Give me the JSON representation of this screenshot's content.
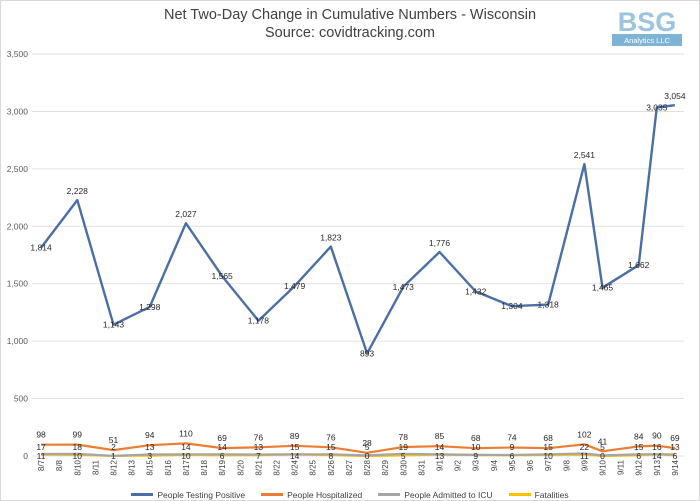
{
  "title": "Net Two-Day Change in Cumulative Numbers - Wisconsin",
  "subtitle": "Source: covidtracking.com",
  "logo": {
    "text": "BSG",
    "tagline": "Analytics LLC"
  },
  "colors": {
    "positive": "#4a6fa5",
    "hospitalized": "#ed7d31",
    "icu": "#a5a5a5",
    "fatalities": "#ffc000",
    "grid": "#d9d9d9",
    "logo": "#7fb3d5"
  },
  "chart_data": {
    "type": "line",
    "title": "Net Two-Day Change in Cumulative Numbers - Wisconsin",
    "subtitle": "Source: covidtracking.com",
    "categories": [
      "8/7",
      "8/8",
      "8/10",
      "8/11",
      "8/12",
      "8/13",
      "8/15",
      "8/16",
      "8/17",
      "8/18",
      "8/19",
      "8/20",
      "8/21",
      "8/22",
      "8/24",
      "8/25",
      "8/26",
      "8/27",
      "8/28",
      "8/29",
      "8/30",
      "8/31",
      "9/1",
      "9/2",
      "9/3",
      "9/4",
      "9/5",
      "9/6",
      "9/7",
      "9/8",
      "9/9",
      "9/10",
      "9/11",
      "9/12",
      "9/13",
      "9/14"
    ],
    "ylim": [
      0,
      3500
    ],
    "yticks": [
      "0",
      "500",
      "1,000",
      "1,500",
      "2,000",
      "2,500",
      "3,000",
      "3,500"
    ],
    "grid": true,
    "legend_position": "bottom",
    "series": [
      {
        "name": "People Testing Positive",
        "color": "#4a6fa5",
        "points": [
          {
            "i": 0,
            "v": 1814,
            "label": "1,814"
          },
          {
            "i": 2,
            "v": 2228,
            "label": "2,228"
          },
          {
            "i": 4,
            "v": 1143,
            "label": "1,143"
          },
          {
            "i": 6,
            "v": 1298,
            "label": "1,298"
          },
          {
            "i": 8,
            "v": 2027,
            "label": "2,027"
          },
          {
            "i": 10,
            "v": 1565,
            "label": "1,565"
          },
          {
            "i": 12,
            "v": 1178,
            "label": "1,178"
          },
          {
            "i": 14,
            "v": 1479,
            "label": "1,479"
          },
          {
            "i": 16,
            "v": 1823,
            "label": "1,823"
          },
          {
            "i": 18,
            "v": 893,
            "label": "893"
          },
          {
            "i": 20,
            "v": 1473,
            "label": "1,473"
          },
          {
            "i": 22,
            "v": 1776,
            "label": "1,776"
          },
          {
            "i": 24,
            "v": 1432,
            "label": "1,432"
          },
          {
            "i": 26,
            "v": 1304,
            "label": "1,304"
          },
          {
            "i": 28,
            "v": 1318,
            "label": "1,318"
          },
          {
            "i": 30,
            "v": 2541,
            "label": "2,541"
          },
          {
            "i": 31,
            "v": 1465,
            "label": "1,465"
          },
          {
            "i": 33,
            "v": 1662,
            "label": "1,662"
          },
          {
            "i": 34,
            "v": 3035,
            "label": "3,035"
          },
          {
            "i": 35,
            "v": 3054,
            "label": "3,054"
          }
        ]
      },
      {
        "name": "People Hospitalized",
        "color": "#ed7d31",
        "points": [
          {
            "i": 0,
            "v": 98,
            "label": "98"
          },
          {
            "i": 2,
            "v": 99,
            "label": "99"
          },
          {
            "i": 4,
            "v": 51,
            "label": "51"
          },
          {
            "i": 6,
            "v": 94,
            "label": "94"
          },
          {
            "i": 8,
            "v": 110,
            "label": "110"
          },
          {
            "i": 10,
            "v": 69,
            "label": "69"
          },
          {
            "i": 12,
            "v": 76,
            "label": "76"
          },
          {
            "i": 14,
            "v": 89,
            "label": "89"
          },
          {
            "i": 16,
            "v": 76,
            "label": "76"
          },
          {
            "i": 18,
            "v": 28,
            "label": "28"
          },
          {
            "i": 20,
            "v": 78,
            "label": "78"
          },
          {
            "i": 22,
            "v": 85,
            "label": "85"
          },
          {
            "i": 24,
            "v": 68,
            "label": "68"
          },
          {
            "i": 26,
            "v": 74,
            "label": "74"
          },
          {
            "i": 28,
            "v": 68,
            "label": "68"
          },
          {
            "i": 30,
            "v": 102,
            "label": "102"
          },
          {
            "i": 31,
            "v": 41,
            "label": "41"
          },
          {
            "i": 33,
            "v": 84,
            "label": "84"
          },
          {
            "i": 34,
            "v": 90,
            "label": "90"
          },
          {
            "i": 35,
            "v": 69,
            "label": "69"
          }
        ]
      },
      {
        "name": "People Admitted to ICU",
        "color": "#a5a5a5",
        "points": [
          {
            "i": 0,
            "v": 17,
            "label": "17"
          },
          {
            "i": 2,
            "v": 18,
            "label": "18"
          },
          {
            "i": 4,
            "v": 2,
            "label": "2"
          },
          {
            "i": 6,
            "v": 13,
            "label": "13"
          },
          {
            "i": 8,
            "v": 14,
            "label": "14"
          },
          {
            "i": 10,
            "v": 14,
            "label": "14"
          },
          {
            "i": 12,
            "v": 13,
            "label": "13"
          },
          {
            "i": 14,
            "v": 15,
            "label": "15"
          },
          {
            "i": 16,
            "v": 15,
            "label": "15"
          },
          {
            "i": 18,
            "v": 5,
            "label": "5"
          },
          {
            "i": 20,
            "v": 19,
            "label": "19"
          },
          {
            "i": 22,
            "v": 14,
            "label": "14"
          },
          {
            "i": 24,
            "v": 10,
            "label": "10"
          },
          {
            "i": 26,
            "v": 9,
            "label": "9"
          },
          {
            "i": 28,
            "v": 15,
            "label": "15"
          },
          {
            "i": 30,
            "v": 22,
            "label": "22"
          },
          {
            "i": 31,
            "v": 5,
            "label": "5"
          },
          {
            "i": 33,
            "v": 15,
            "label": "15"
          },
          {
            "i": 34,
            "v": 16,
            "label": "16"
          },
          {
            "i": 35,
            "v": 13,
            "label": "13"
          }
        ]
      },
      {
        "name": "Fatalities",
        "color": "#ffc000",
        "points": [
          {
            "i": 0,
            "v": 11,
            "label": "11"
          },
          {
            "i": 2,
            "v": 10,
            "label": "10"
          },
          {
            "i": 4,
            "v": 1,
            "label": "1"
          },
          {
            "i": 6,
            "v": 3,
            "label": "3"
          },
          {
            "i": 8,
            "v": 10,
            "label": "10"
          },
          {
            "i": 10,
            "v": 6,
            "label": "6"
          },
          {
            "i": 12,
            "v": 7,
            "label": "7"
          },
          {
            "i": 14,
            "v": 14,
            "label": "14"
          },
          {
            "i": 16,
            "v": 8,
            "label": "8"
          },
          {
            "i": 18,
            "v": 0,
            "label": "0"
          },
          {
            "i": 20,
            "v": 5,
            "label": "5"
          },
          {
            "i": 22,
            "v": 13,
            "label": "13"
          },
          {
            "i": 24,
            "v": 9,
            "label": "9"
          },
          {
            "i": 26,
            "v": 6,
            "label": "6"
          },
          {
            "i": 28,
            "v": 10,
            "label": "10"
          },
          {
            "i": 30,
            "v": 11,
            "label": "11"
          },
          {
            "i": 31,
            "v": 0,
            "label": "0"
          },
          {
            "i": 33,
            "v": 6,
            "label": "6"
          },
          {
            "i": 34,
            "v": 14,
            "label": "14"
          },
          {
            "i": 35,
            "v": 6,
            "label": "6"
          }
        ]
      }
    ]
  }
}
